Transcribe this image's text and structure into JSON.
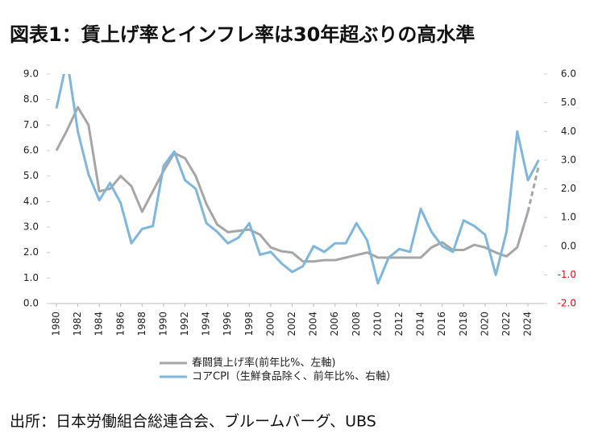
{
  "chart_data": {
    "type": "line",
    "title": "図表1：賃上げ率とインフレ率は30年超ぶりの高水準",
    "source": "出所：日本労働組合総連合会、ブルームバーグ、UBS",
    "x": [
      1980,
      1981,
      1982,
      1983,
      1984,
      1985,
      1986,
      1987,
      1988,
      1989,
      1990,
      1991,
      1992,
      1993,
      1994,
      1995,
      1996,
      1997,
      1998,
      1999,
      2000,
      2001,
      2002,
      2003,
      2004,
      2005,
      2006,
      2007,
      2008,
      2009,
      2010,
      2011,
      2012,
      2013,
      2014,
      2015,
      2016,
      2017,
      2018,
      2019,
      2020,
      2021,
      2022,
      2023,
      2024,
      2025
    ],
    "xlim": [
      1979.4,
      2025.5
    ],
    "xticks": [
      1980,
      1982,
      1984,
      1986,
      1988,
      1990,
      1992,
      1994,
      1996,
      1998,
      2000,
      2002,
      2004,
      2006,
      2008,
      2010,
      2012,
      2014,
      2016,
      2018,
      2020,
      2022,
      2024
    ],
    "ylim": [
      0,
      9
    ],
    "yticks": [
      {
        "value": 0,
        "label": "0.0"
      },
      {
        "value": 1,
        "label": "1.0"
      },
      {
        "value": 2,
        "label": "2.0"
      },
      {
        "value": 3,
        "label": "3.0"
      },
      {
        "value": 4,
        "label": "4.0"
      },
      {
        "value": 5,
        "label": "5.0"
      },
      {
        "value": 6,
        "label": "6.0"
      },
      {
        "value": 7,
        "label": "7.0"
      },
      {
        "value": 8,
        "label": "8.0"
      },
      {
        "value": 9,
        "label": "9.0"
      }
    ],
    "y2lim": [
      -2,
      6
    ],
    "y2ticks": [
      {
        "value": -2,
        "label": "-2.0"
      },
      {
        "value": -1,
        "label": "-1.0"
      },
      {
        "value": 0,
        "label": "0.0"
      },
      {
        "value": 1,
        "label": "1.0"
      },
      {
        "value": 2,
        "label": "2.0"
      },
      {
        "value": 3,
        "label": "3.0"
      },
      {
        "value": 4,
        "label": "4.0"
      },
      {
        "value": 5,
        "label": "5.0"
      },
      {
        "value": 6,
        "label": "6.0"
      }
    ],
    "negative_tick_color": "#ff0000",
    "series": [
      {
        "name": "春闘賃上げ率(前年比%、左軸)",
        "color": "#a6a6a6",
        "dashed_last_segment": true,
        "values": [
          6.0,
          6.8,
          7.7,
          7.0,
          4.4,
          4.5,
          5.0,
          4.6,
          3.6,
          4.4,
          5.2,
          5.9,
          5.7,
          5.0,
          3.9,
          3.1,
          2.8,
          2.85,
          2.9,
          2.7,
          2.2,
          2.05,
          2.0,
          1.65,
          1.65,
          1.7,
          1.7,
          1.8,
          1.9,
          2.0,
          1.8,
          1.8,
          1.8,
          1.8,
          1.8,
          2.2,
          2.4,
          2.1,
          2.1,
          2.3,
          2.2,
          2.0,
          1.85,
          2.2,
          3.6,
          5.4
        ]
      },
      {
        "name": "コアCPI（生鮮食品除く、前年比%、右軸）",
        "color": "#7eb7dd",
        "axis": "y2",
        "values": [
          4.8,
          6.5,
          4.0,
          2.5,
          1.6,
          2.2,
          1.5,
          0.1,
          0.6,
          0.7,
          2.8,
          3.3,
          2.3,
          2.0,
          0.8,
          0.5,
          0.1,
          0.3,
          0.8,
          -0.3,
          -0.2,
          -0.6,
          -0.9,
          -0.7,
          0.0,
          -0.2,
          0.1,
          0.1,
          0.8,
          0.2,
          -1.3,
          -0.4,
          -0.1,
          -0.2,
          1.3,
          0.5,
          0.0,
          -0.2,
          0.9,
          0.7,
          0.4,
          -1.0,
          0.5,
          4.0,
          2.3,
          3.0
        ]
      }
    ]
  }
}
